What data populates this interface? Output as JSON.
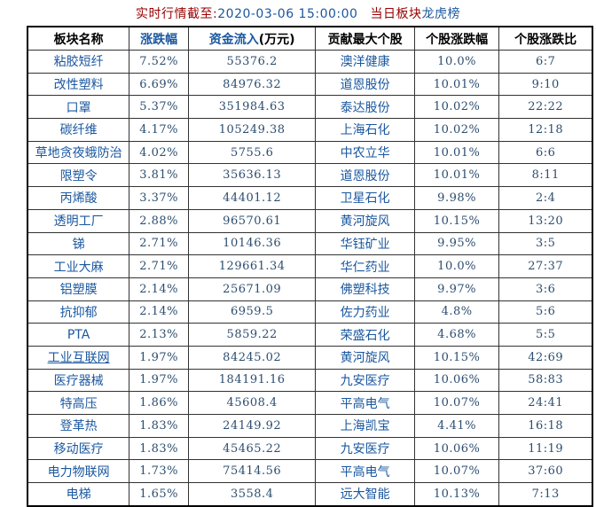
{
  "title": {
    "time_label": "实时行情截至:",
    "datetime": "2020-03-06 15:00:00",
    "board_label": "当日板块",
    "longhu_link": "龙虎榜"
  },
  "table": {
    "headers": [
      {
        "label": "板块名称"
      },
      {
        "label": "涨跌幅"
      },
      {
        "label": "资金流入",
        "suffix": "(万元)"
      },
      {
        "label": "贡献最大个股"
      },
      {
        "label": "个股涨跌幅"
      },
      {
        "label": "个股涨跌比"
      }
    ],
    "underlined_row": 13,
    "rows": [
      [
        "粘胶短纤",
        "7.52%",
        "55376.2",
        "澳洋健康",
        "10.0%",
        "6:7"
      ],
      [
        "改性塑料",
        "6.69%",
        "84976.32",
        "道恩股份",
        "10.01%",
        "9:10"
      ],
      [
        "口罩",
        "5.37%",
        "351984.63",
        "泰达股份",
        "10.02%",
        "22:22"
      ],
      [
        "碳纤维",
        "4.17%",
        "105249.38",
        "上海石化",
        "10.02%",
        "12:18"
      ],
      [
        "草地贪夜蛾防治",
        "4.02%",
        "5755.6",
        "中农立华",
        "10.01%",
        "6:6"
      ],
      [
        "限塑令",
        "3.81%",
        "35636.13",
        "道恩股份",
        "10.01%",
        "8:11"
      ],
      [
        "丙烯酸",
        "3.37%",
        "44401.12",
        "卫星石化",
        "9.98%",
        "2:4"
      ],
      [
        "透明工厂",
        "2.88%",
        "96570.61",
        "黄河旋风",
        "10.15%",
        "13:20"
      ],
      [
        "锑",
        "2.71%",
        "10146.36",
        "华钰矿业",
        "9.95%",
        "3:5"
      ],
      [
        "工业大麻",
        "2.71%",
        "129661.34",
        "华仁药业",
        "10.0%",
        "27:37"
      ],
      [
        "铝塑膜",
        "2.14%",
        "25671.09",
        "佛塑科技",
        "9.97%",
        "3:6"
      ],
      [
        "抗抑郁",
        "2.14%",
        "6959.5",
        "佐力药业",
        "4.8%",
        "5:6"
      ],
      [
        "PTA",
        "2.13%",
        "5859.22",
        "荣盛石化",
        "4.68%",
        "5:5"
      ],
      [
        "工业互联网",
        "1.97%",
        "84245.02",
        "黄河旋风",
        "10.15%",
        "42:69"
      ],
      [
        "医疗器械",
        "1.97%",
        "184191.16",
        "九安医疗",
        "10.06%",
        "58:83"
      ],
      [
        "特高压",
        "1.86%",
        "45608.4",
        "平高电气",
        "10.07%",
        "24:41"
      ],
      [
        "登革热",
        "1.83%",
        "24149.92",
        "上海凯宝",
        "4.41%",
        "16:18"
      ],
      [
        "移动医疗",
        "1.83%",
        "45465.22",
        "九安医疗",
        "10.06%",
        "11:19"
      ],
      [
        "电力物联网",
        "1.73%",
        "75414.56",
        "平高电气",
        "10.07%",
        "37:60"
      ],
      [
        "电梯",
        "1.65%",
        "3558.4",
        "远大智能",
        "10.13%",
        "7:13"
      ]
    ]
  },
  "colors": {
    "red": "#990000",
    "link-blue": "#1A579F",
    "num-blue": "#2C4D6F",
    "border": "#333333"
  }
}
